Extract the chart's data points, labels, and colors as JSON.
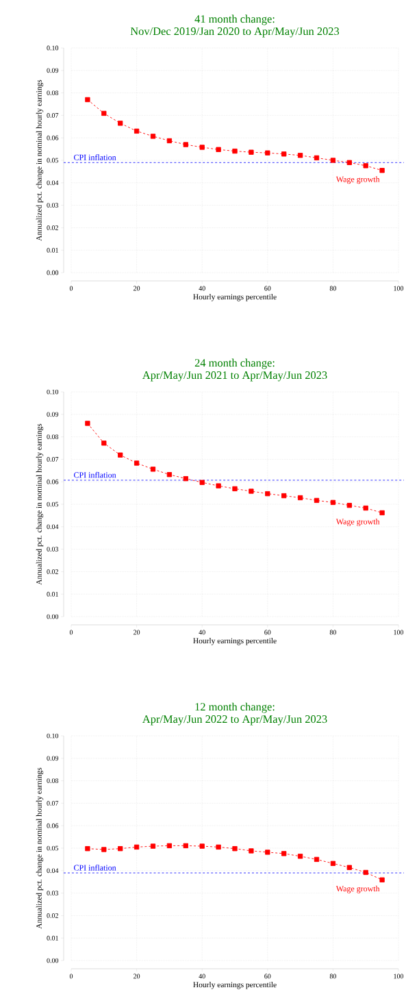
{
  "chart_data": [
    {
      "type": "line",
      "title": "41 month change:",
      "subtitle": "Nov/Dec 2019/Jan 2020 to Apr/May/Jun 2023",
      "xlabel": "Hourly earnings percentile",
      "ylabel": "Annualized pct. change in nominal hourly earnings",
      "x": [
        5,
        10,
        15,
        20,
        25,
        30,
        35,
        40,
        45,
        50,
        55,
        60,
        65,
        70,
        75,
        80,
        85,
        90,
        95
      ],
      "series": [
        {
          "name": "Wage growth",
          "color": "#ff0000",
          "values": [
            0.077,
            0.0709,
            0.0665,
            0.063,
            0.0607,
            0.0587,
            0.057,
            0.0558,
            0.0548,
            0.0541,
            0.0536,
            0.0533,
            0.0528,
            0.0522,
            0.0511,
            0.05,
            0.049,
            0.0476,
            0.0455
          ]
        }
      ],
      "ref_lines": [
        {
          "axis": "y",
          "value": 0.049,
          "label": "CPI inflation",
          "color": "#0000ff",
          "line_style": "dashed"
        }
      ],
      "xlim": [
        0,
        100
      ],
      "xticks": [
        0,
        20,
        40,
        60,
        80,
        100
      ],
      "ylim": [
        0,
        0.1
      ],
      "yticks": [
        {
          "value": 0,
          "label": "0.00"
        },
        {
          "value": 0.01,
          "label": "0.01"
        },
        {
          "value": 0.02,
          "label": "0.02"
        },
        {
          "value": 0.03,
          "label": "0.03"
        },
        {
          "value": 0.04,
          "label": "0.04"
        },
        {
          "value": 0.05,
          "label": "0.05"
        },
        {
          "value": 0.06,
          "label": "0.06"
        },
        {
          "value": 0.07,
          "label": "0.07"
        },
        {
          "value": 0.08,
          "label": "0.08"
        },
        {
          "value": 0.09,
          "label": "0.09"
        },
        {
          "value": 0.1,
          "label": "0.10"
        }
      ],
      "grid": true,
      "marker": "square",
      "line_style": "dashed"
    },
    {
      "type": "line",
      "title": "24 month change:",
      "subtitle": "Apr/May/Jun 2021 to Apr/May/Jun 2023",
      "xlabel": "Hourly earnings percentile",
      "ylabel": "Annualized pct. change in nominal hourly earnings",
      "x": [
        5,
        10,
        15,
        20,
        25,
        30,
        35,
        40,
        45,
        50,
        55,
        60,
        65,
        70,
        75,
        80,
        85,
        90,
        95
      ],
      "series": [
        {
          "name": "Wage growth",
          "color": "#ff0000",
          "values": [
            0.086,
            0.0772,
            0.0719,
            0.0683,
            0.0656,
            0.0632,
            0.0614,
            0.0597,
            0.0582,
            0.0569,
            0.0558,
            0.0547,
            0.0538,
            0.0529,
            0.0517,
            0.0508,
            0.0495,
            0.0483,
            0.0462
          ]
        }
      ],
      "ref_lines": [
        {
          "axis": "y",
          "value": 0.0607,
          "label": "CPI inflation",
          "color": "#0000ff",
          "line_style": "dashed"
        }
      ],
      "xlim": [
        0,
        100
      ],
      "xticks": [
        0,
        20,
        40,
        60,
        80,
        100
      ],
      "ylim": [
        0,
        0.1
      ],
      "yticks": [
        {
          "value": 0,
          "label": "0.00"
        },
        {
          "value": 0.01,
          "label": "0.01"
        },
        {
          "value": 0.02,
          "label": "0.02"
        },
        {
          "value": 0.03,
          "label": "0.03"
        },
        {
          "value": 0.04,
          "label": "0.04"
        },
        {
          "value": 0.05,
          "label": "0.05"
        },
        {
          "value": 0.06,
          "label": "0.06"
        },
        {
          "value": 0.07,
          "label": "0.07"
        },
        {
          "value": 0.08,
          "label": "0.08"
        },
        {
          "value": 0.09,
          "label": "0.09"
        },
        {
          "value": 0.1,
          "label": "0.10"
        }
      ],
      "grid": true,
      "marker": "square",
      "line_style": "dashed"
    },
    {
      "type": "line",
      "title": "12 month change:",
      "subtitle": "Apr/May/Jun 2022 to Apr/May/Jun 2023",
      "xlabel": "Hourly earnings percentile",
      "ylabel": "Annualized pct. change in nominal hourly earnings",
      "x": [
        5,
        10,
        15,
        20,
        25,
        30,
        35,
        40,
        45,
        50,
        55,
        60,
        65,
        70,
        75,
        80,
        85,
        90,
        95
      ],
      "series": [
        {
          "name": "Wage growth",
          "color": "#ff0000",
          "values": [
            0.0498,
            0.0494,
            0.0498,
            0.0505,
            0.0509,
            0.0511,
            0.0511,
            0.0509,
            0.0505,
            0.0498,
            0.0488,
            0.0482,
            0.0476,
            0.0464,
            0.045,
            0.0432,
            0.0414,
            0.0392,
            0.0359
          ]
        }
      ],
      "ref_lines": [
        {
          "axis": "y",
          "value": 0.039,
          "label": "CPI inflation",
          "color": "#0000ff",
          "line_style": "dashed"
        }
      ],
      "xlim": [
        0,
        100
      ],
      "xticks": [
        0,
        20,
        40,
        60,
        80,
        100
      ],
      "ylim": [
        0,
        0.1
      ],
      "yticks": [
        {
          "value": 0,
          "label": "0.00"
        },
        {
          "value": 0.01,
          "label": "0.01"
        },
        {
          "value": 0.02,
          "label": "0.02"
        },
        {
          "value": 0.03,
          "label": "0.03"
        },
        {
          "value": 0.04,
          "label": "0.04"
        },
        {
          "value": 0.05,
          "label": "0.05"
        },
        {
          "value": 0.06,
          "label": "0.06"
        },
        {
          "value": 0.07,
          "label": "0.07"
        },
        {
          "value": 0.08,
          "label": "0.08"
        },
        {
          "value": 0.09,
          "label": "0.09"
        },
        {
          "value": 0.1,
          "label": "0.10"
        }
      ],
      "grid": true,
      "marker": "square",
      "line_style": "dashed"
    }
  ]
}
